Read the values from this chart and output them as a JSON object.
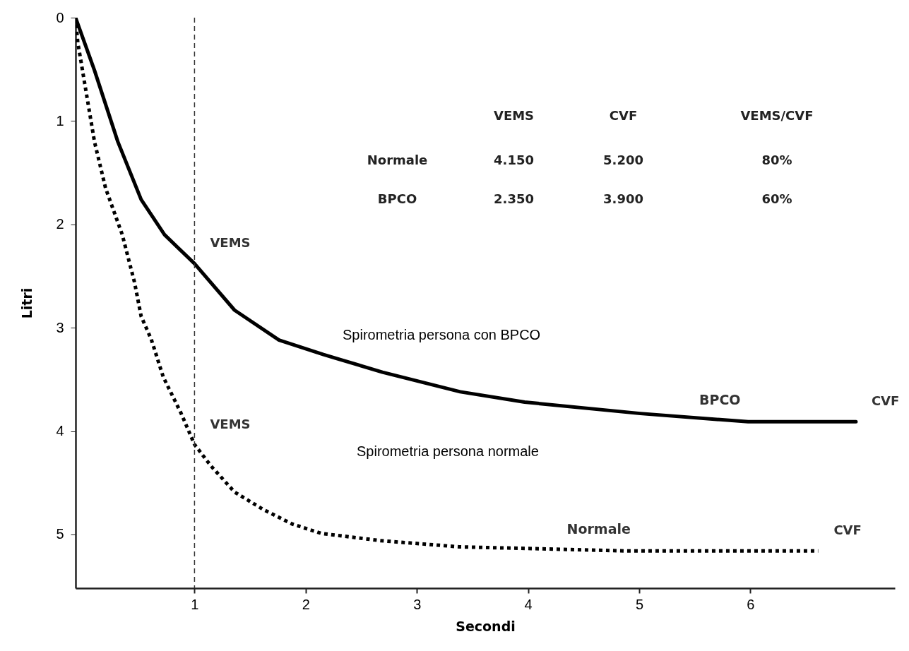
{
  "chart_data": {
    "type": "line",
    "xlabel": "Secondi",
    "ylabel": "Litri",
    "xlim": [
      -0.07,
      7.3
    ],
    "ylim": [
      5.52,
      0
    ],
    "xticks": [
      1,
      2,
      3,
      4,
      5,
      6
    ],
    "yticks": [
      0,
      1,
      2,
      3,
      4,
      5
    ],
    "grid": false,
    "series": [
      {
        "name": "BPCO",
        "color": "#000000",
        "line_style": "solid",
        "x": [
          -0.07,
          0.1,
          0.31,
          0.52,
          0.73,
          1.0,
          1.36,
          1.76,
          2.16,
          2.69,
          3.39,
          3.97,
          5.01,
          5.98,
          6.95
        ],
        "values": [
          0,
          0.51,
          1.2,
          1.76,
          2.1,
          2.38,
          2.83,
          3.12,
          3.26,
          3.43,
          3.62,
          3.72,
          3.83,
          3.91,
          3.91
        ]
      },
      {
        "name": "Normale",
        "color": "#000000",
        "line_style": "dotted",
        "x": [
          -0.07,
          -0.05,
          0.1,
          0.2,
          0.35,
          0.46,
          0.52,
          0.61,
          0.72,
          0.88,
          1.0,
          1.15,
          1.36,
          1.62,
          1.88,
          2.14,
          2.67,
          3.38,
          4.89,
          6.61
        ],
        "values": [
          0,
          0.24,
          1.2,
          1.65,
          2.1,
          2.56,
          2.89,
          3.11,
          3.48,
          3.83,
          4.13,
          4.34,
          4.59,
          4.76,
          4.9,
          4.99,
          5.06,
          5.12,
          5.16,
          5.16
        ]
      }
    ],
    "ref_lines": [
      {
        "axis": "x",
        "value": 1,
        "label": null,
        "color": "#333333",
        "line_style": "dashed"
      }
    ],
    "annotations": [
      {
        "text": "VEMS",
        "x": 1,
        "y": 2.38
      },
      {
        "text": "VEMS",
        "x": 1,
        "y": 4.13
      },
      {
        "text": "CVF",
        "x": 6.95,
        "y": 3.91
      },
      {
        "text": "CVF",
        "x": 6.61,
        "y": 5.16
      },
      "Spirometria persona con BPCO",
      "Spirometria persona normale",
      "VEMS",
      "CVF",
      "VEMS/CVF",
      "Normale",
      "4.150",
      "5.200",
      "80%",
      "BPCO",
      "2.350",
      "3.900",
      "60%"
    ]
  }
}
